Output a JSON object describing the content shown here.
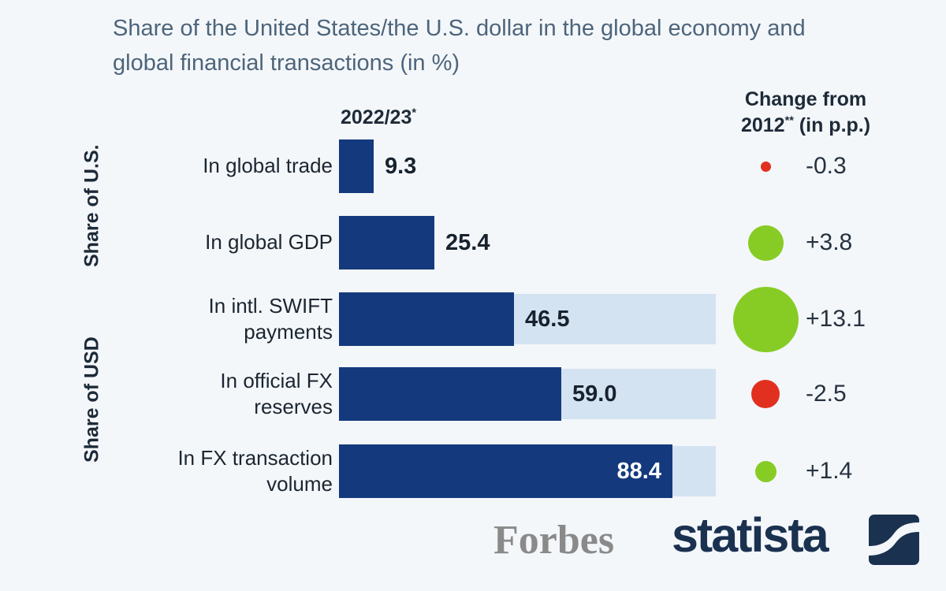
{
  "title": "Share of the United States/the U.S. dollar in the global economy and global financial transactions (in %)",
  "columns": {
    "year_text": "2022/23",
    "year_sup": "*",
    "change_line1": "Change from",
    "change2_pre": "2012",
    "change2_sup": "**",
    "change2_post": " (in p.p.)"
  },
  "groups": {
    "us": "Share of U.S.",
    "usd": "Share of USD"
  },
  "rows": [
    {
      "line1": "In global trade",
      "line2": "",
      "value": "9.3",
      "change": "-0.3"
    },
    {
      "line1": "In global GDP",
      "line2": "",
      "value": "25.4",
      "change": "+3.8"
    },
    {
      "line1": "In intl. SWIFT",
      "line2": "payments",
      "value": "46.5",
      "change": "+13.1"
    },
    {
      "line1": "In official FX",
      "line2": "reserves",
      "value": "59.0",
      "change": "-2.5"
    },
    {
      "line1": "In FX transaction",
      "line2": "volume",
      "value": "88.4",
      "change": "+1.4"
    }
  ],
  "chart_data": {
    "type": "bar",
    "orientation": "horizontal",
    "title": "Share of the United States/the U.S. dollar in the global economy and global financial transactions (in %)",
    "period_label": "2022/23*",
    "change_label": "Change from 2012** (in p.p.)",
    "categories": [
      "In global trade",
      "In global GDP",
      "In intl. SWIFT payments",
      "In official FX reserves",
      "In FX transaction volume"
    ],
    "values": [
      9.3,
      25.4,
      46.5,
      59.0,
      88.4
    ],
    "change_pp": [
      -0.3,
      3.8,
      13.1,
      -2.5,
      1.4
    ],
    "groups": [
      {
        "name": "Share of U.S.",
        "categories": [
          "In global trade",
          "In global GDP"
        ]
      },
      {
        "name": "Share of USD",
        "categories": [
          "In intl. SWIFT payments",
          "In official FX reserves",
          "In FX transaction volume"
        ]
      }
    ],
    "xlim": [
      0,
      100
    ],
    "grid": false,
    "legend": false
  },
  "footer": {
    "source_left": "Forbes",
    "source_right": "statista"
  },
  "colors": {
    "bar": "#143a7d",
    "track": "#d4e3f2",
    "positive": "#87cc25",
    "negative": "#e1301f",
    "background": "#f4f7fa",
    "title": "#4d657b"
  }
}
